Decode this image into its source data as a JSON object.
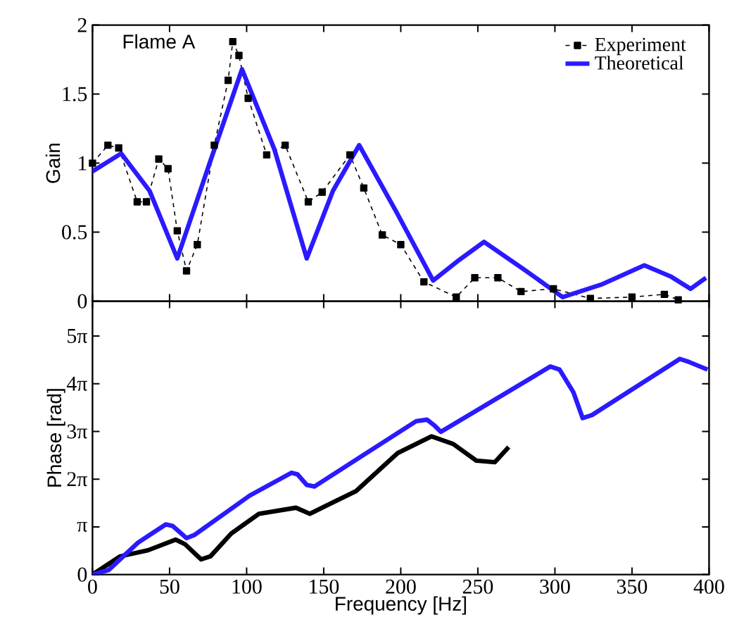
{
  "chart_data": [
    {
      "type": "line",
      "ylabel": "Gain",
      "annotations": [
        "Flame A"
      ],
      "xlim": [
        0,
        400
      ],
      "ylim": [
        0,
        2
      ],
      "xticks": [
        0,
        50,
        100,
        150,
        200,
        250,
        300,
        350,
        400
      ],
      "yticks": [
        0,
        0.5,
        1,
        1.5,
        2
      ],
      "tick_labels": "y",
      "legend": "top right",
      "grid": false,
      "series": [
        {
          "name": "Experiment",
          "color": "#000000",
          "marker": "square",
          "line_style": "dashed",
          "x": [
            0,
            10,
            17,
            29,
            35,
            43,
            49,
            55,
            61,
            68,
            79,
            88,
            91,
            95,
            101,
            113,
            125,
            140,
            149,
            167,
            176,
            188,
            200,
            215,
            236,
            248,
            263,
            278,
            299,
            323,
            350,
            371,
            380
          ],
          "values": [
            1.0,
            1.13,
            1.11,
            0.72,
            0.72,
            1.03,
            0.96,
            0.51,
            0.22,
            0.41,
            1.13,
            1.6,
            1.88,
            1.78,
            1.47,
            1.06,
            1.13,
            0.72,
            0.79,
            1.06,
            0.82,
            0.48,
            0.41,
            0.14,
            0.03,
            0.17,
            0.17,
            0.07,
            0.09,
            0.02,
            0.03,
            0.05,
            0.01
          ]
        },
        {
          "name": "Theoretical",
          "color": "#2a1aff",
          "marker": "none",
          "line_style": "solid",
          "x": [
            0,
            18.6,
            37,
            55,
            76,
            97,
            118,
            139,
            156,
            173,
            197,
            221,
            238,
            254,
            280,
            305,
            330,
            358,
            375,
            388,
            398
          ],
          "values": [
            0.94,
            1.07,
            0.8,
            0.31,
            1.0,
            1.68,
            1.1,
            0.31,
            0.8,
            1.13,
            0.65,
            0.15,
            0.3,
            0.43,
            0.23,
            0.03,
            0.12,
            0.26,
            0.18,
            0.09,
            0.17
          ]
        }
      ]
    },
    {
      "type": "line",
      "xlabel": "Frequency [Hz]",
      "ylabel": "Phase [rad]",
      "xlim": [
        0,
        400
      ],
      "ylim": [
        0,
        18
      ],
      "xticks": [
        0,
        50,
        100,
        150,
        200,
        250,
        300,
        350,
        400
      ],
      "yticks": [
        0,
        {
          "value": 3.1416,
          "label": "π"
        },
        {
          "value": 6.2832,
          "label": "2π"
        },
        {
          "value": 9.4248,
          "label": "3π"
        },
        {
          "value": 12.5664,
          "label": "4π"
        },
        {
          "value": 15.708,
          "label": "5π"
        }
      ],
      "grid": false,
      "series": [
        {
          "color": "#000000",
          "x": [
            0,
            18,
            36,
            54,
            60,
            70.5,
            76.5,
            90,
            108,
            132,
            141,
            153,
            171,
            198,
            220,
            234,
            249,
            261,
            270
          ],
          "values": [
            0,
            1.2,
            1.6,
            2.3,
            2.0,
            1.0,
            1.2,
            2.7,
            4.0,
            4.4,
            4.0,
            4.6,
            5.5,
            8.0,
            9.1,
            8.6,
            7.5,
            7.4,
            8.4
          ]
        },
        {
          "color": "#2a1aff",
          "x": [
            0,
            10.5,
            29.5,
            47.5,
            52,
            61,
            66,
            102,
            129,
            133,
            139,
            144,
            210,
            217,
            222,
            226,
            297,
            303,
            312,
            318,
            324,
            381,
            387,
            399
          ],
          "values": [
            0,
            0.3,
            2.1,
            3.3,
            3.2,
            2.4,
            2.6,
            5.2,
            6.7,
            6.6,
            5.9,
            5.8,
            10.1,
            10.2,
            9.8,
            9.4,
            13.7,
            13.5,
            12.0,
            10.3,
            10.5,
            14.2,
            14.0,
            13.5
          ]
        }
      ]
    }
  ]
}
